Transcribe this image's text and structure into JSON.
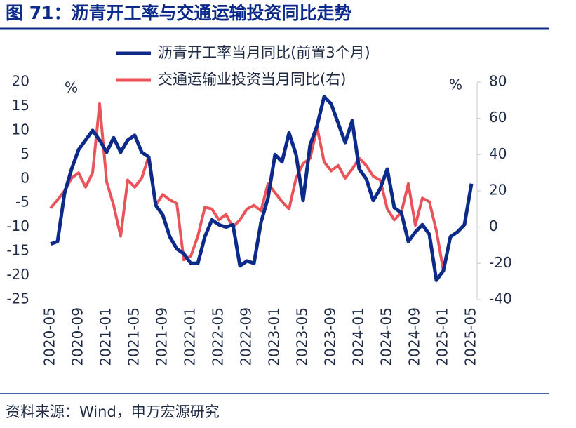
{
  "chart_data": {
    "type": "line",
    "title": "图 71：沥青开工率与交通运输投资同比走势",
    "source": "资料来源：Wind，申万宏源研究",
    "y_label": "%",
    "y2_label": "%",
    "categories": [
      "2020-05",
      null,
      null,
      null,
      "2020-09",
      null,
      null,
      null,
      "2021-01",
      null,
      null,
      null,
      "2021-05",
      null,
      null,
      null,
      "2021-09",
      null,
      null,
      null,
      "2022-01",
      null,
      null,
      null,
      "2022-05",
      null,
      null,
      null,
      "2022-09",
      null,
      null,
      null,
      "2023-01",
      null,
      null,
      null,
      "2023-05",
      null,
      null,
      null,
      "2023-09",
      null,
      null,
      null,
      "2024-01",
      null,
      null,
      null,
      "2024-05",
      null,
      null,
      null,
      "2024-09",
      null,
      null,
      null,
      "2025-01",
      null,
      null,
      null,
      "2025-05"
    ],
    "series": [
      {
        "name": "沥青开工率当月同比(前置3个月)",
        "color": "#0b2a8a",
        "values": [
          -13.5,
          -13,
          -3,
          2,
          6,
          8,
          10,
          8,
          5.5,
          8.5,
          5.5,
          8,
          9,
          5.5,
          4.5,
          -5.5,
          -7.5,
          -12,
          -14.5,
          -15.5,
          -17.5,
          -17.5,
          -12,
          -8.5,
          -9.5,
          -10,
          -9.5,
          -18,
          -17,
          -17.5,
          -9,
          -4,
          5,
          3.5,
          9.5,
          5,
          -4.5,
          7,
          11,
          17,
          15.5,
          11.5,
          7.5,
          12,
          2,
          0,
          -4.5,
          -2,
          2,
          -6,
          -7,
          -13,
          -11,
          -9.5,
          -11.5,
          -21,
          -19,
          -12,
          -11,
          -9.5,
          -1
        ]
      },
      {
        "name": "交通运输业投资当月同比(右)",
        "color": "#e8545a",
        "axis": "y2",
        "values": [
          10.5,
          15,
          20,
          27,
          30,
          22,
          30,
          68,
          25,
          12,
          -5,
          26,
          22,
          27,
          39,
          12,
          18,
          15,
          13,
          -18,
          -16,
          -5,
          11,
          10,
          4,
          7,
          0,
          4,
          10,
          12,
          9,
          24,
          19,
          14,
          10,
          27,
          35,
          38,
          55,
          36,
          31,
          34,
          27,
          32,
          38,
          34,
          28,
          26,
          10,
          4,
          8,
          24,
          1,
          16,
          14,
          -2,
          -24,
          null,
          null,
          null,
          null
        ]
      }
    ],
    "ylim": [
      -25,
      20
    ],
    "yticks": [
      -25,
      -20,
      -15,
      -10,
      -5,
      0,
      5,
      10,
      15,
      20
    ],
    "y2lim": [
      -40,
      80
    ],
    "y2ticks": [
      -40,
      -20,
      0,
      20,
      40,
      60,
      80
    ],
    "grid": false
  }
}
